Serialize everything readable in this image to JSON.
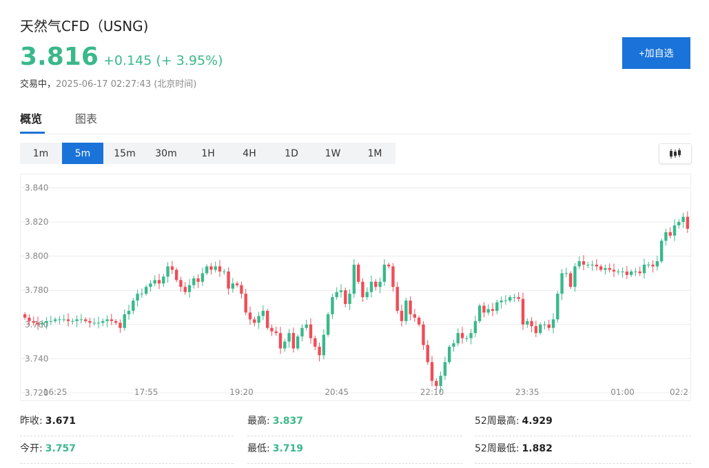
{
  "header": {
    "title": "天然气CFD（USNG)",
    "price": "3.816",
    "change": "+0.145 (+ 3.95%)",
    "status_label": "交易中，",
    "timestamp": "2025-06-17 02:27:43 (北京时间)",
    "add_watchlist_label": "+加自选"
  },
  "tabs": [
    {
      "label": "概览",
      "active": true
    },
    {
      "label": "图表",
      "active": false
    }
  ],
  "timeframes": [
    {
      "label": "1m",
      "active": false
    },
    {
      "label": "5m",
      "active": true
    },
    {
      "label": "15m",
      "active": false
    },
    {
      "label": "30m",
      "active": false
    },
    {
      "label": "1H",
      "active": false
    },
    {
      "label": "4H",
      "active": false
    },
    {
      "label": "1D",
      "active": false
    },
    {
      "label": "1W",
      "active": false
    },
    {
      "label": "1M",
      "active": false
    }
  ],
  "chart_type_icon": "candlestick-icon",
  "colors": {
    "up": "#3ab88b",
    "down": "#ef4d57",
    "accent": "#1a73d9"
  },
  "chart_data": {
    "type": "candlestick",
    "y_ticks": [
      "3.720",
      "3.740",
      "3.760",
      "3.780",
      "3.800",
      "3.820",
      "3.840"
    ],
    "x_ticks": [
      "16:25",
      "17:55",
      "19:20",
      "20:45",
      "22:10",
      "23:35",
      "01:00",
      "02:2"
    ],
    "ylim": [
      3.72,
      3.845
    ],
    "grid": true,
    "closes": [
      3.764,
      3.762,
      3.761,
      3.76,
      3.761,
      3.762,
      3.762,
      3.763,
      3.763,
      3.763,
      3.762,
      3.762,
      3.763,
      3.763,
      3.762,
      3.761,
      3.761,
      3.761,
      3.762,
      3.763,
      3.762,
      3.761,
      3.758,
      3.766,
      3.768,
      3.774,
      3.778,
      3.778,
      3.782,
      3.784,
      3.786,
      3.784,
      3.788,
      3.794,
      3.792,
      3.786,
      3.782,
      3.779,
      3.783,
      3.787,
      3.785,
      3.79,
      3.794,
      3.792,
      3.794,
      3.791,
      3.791,
      3.781,
      3.784,
      3.783,
      3.778,
      3.767,
      3.763,
      3.761,
      3.765,
      3.768,
      3.758,
      3.756,
      3.755,
      3.746,
      3.75,
      3.755,
      3.746,
      3.753,
      3.758,
      3.76,
      3.752,
      3.747,
      3.742,
      3.754,
      3.766,
      3.776,
      3.779,
      3.78,
      3.772,
      3.778,
      3.795,
      3.785,
      3.776,
      3.779,
      3.785,
      3.782,
      3.785,
      3.795,
      3.794,
      3.782,
      3.768,
      3.762,
      3.774,
      3.766,
      3.764,
      3.76,
      3.748,
      3.738,
      3.727,
      3.724,
      3.73,
      3.738,
      3.747,
      3.749,
      3.755,
      3.752,
      3.752,
      3.755,
      3.762,
      3.771,
      3.767,
      3.769,
      3.768,
      3.773,
      3.774,
      3.774,
      3.776,
      3.776,
      3.775,
      3.76,
      3.762,
      3.759,
      3.755,
      3.76,
      3.76,
      3.758,
      3.763,
      3.778,
      3.79,
      3.79,
      3.782,
      3.794,
      3.797,
      3.795,
      3.795,
      3.795,
      3.794,
      3.792,
      3.793,
      3.792,
      3.791,
      3.791,
      3.791,
      3.789,
      3.791,
      3.791,
      3.79,
      3.795,
      3.795,
      3.794,
      3.797,
      3.809,
      3.814,
      3.812,
      3.818,
      3.82,
      3.823,
      3.816
    ]
  },
  "stats": [
    [
      {
        "label": "昨收:",
        "value": "3.671",
        "up": false
      },
      {
        "label": "最高:",
        "value": "3.837",
        "up": true
      },
      {
        "label": "52周最高:",
        "value": "4.929",
        "up": false
      }
    ],
    [
      {
        "label": "今开:",
        "value": "3.757",
        "up": true
      },
      {
        "label": "最低:",
        "value": "3.719",
        "up": true
      },
      {
        "label": "52周最低:",
        "value": "1.882",
        "up": false
      }
    ]
  ]
}
